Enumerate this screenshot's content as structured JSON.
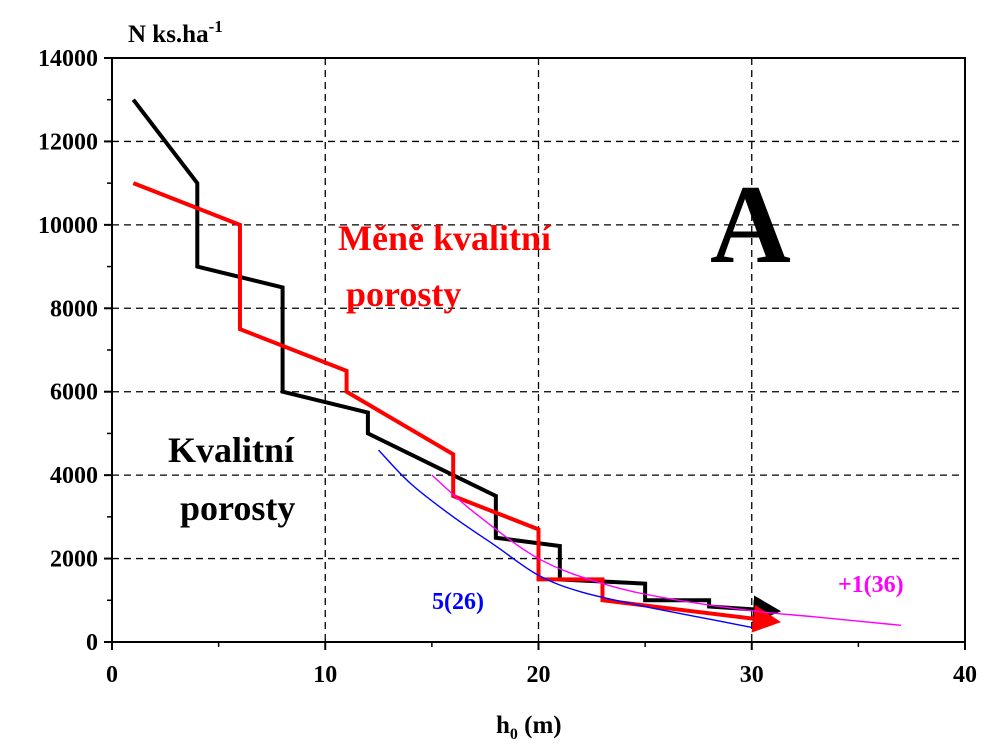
{
  "chart_data": {
    "type": "line",
    "title": "",
    "ylabel_base": "N ks.ha",
    "ylabel_sup": "-1",
    "xlabel_base": "h",
    "xlabel_sub": "0",
    "xlabel_rest": " (m)",
    "xlim": [
      0,
      40
    ],
    "ylim": [
      0,
      14000
    ],
    "x_ticks": [
      0,
      10,
      20,
      30,
      40
    ],
    "y_ticks": [
      0,
      2000,
      4000,
      6000,
      8000,
      10000,
      12000,
      14000
    ],
    "grid": "dashed",
    "series": [
      {
        "key": "black",
        "color": "#000000",
        "arrow": true,
        "points": [
          [
            1,
            13000
          ],
          [
            4,
            11000
          ],
          [
            4,
            9000
          ],
          [
            8,
            8500
          ],
          [
            8,
            6000
          ],
          [
            12,
            5500
          ],
          [
            12,
            5000
          ],
          [
            16,
            4000
          ],
          [
            18,
            3500
          ],
          [
            18,
            2500
          ],
          [
            21,
            2300
          ],
          [
            21,
            1500
          ],
          [
            25,
            1400
          ],
          [
            25,
            1000
          ],
          [
            28,
            1000
          ],
          [
            28,
            850
          ],
          [
            31,
            750
          ]
        ]
      },
      {
        "key": "red",
        "color": "#ff0000",
        "arrow": true,
        "points": [
          [
            1,
            11000
          ],
          [
            6,
            10000
          ],
          [
            6,
            7500
          ],
          [
            11,
            6500
          ],
          [
            11,
            6000
          ],
          [
            16,
            4500
          ],
          [
            16,
            3500
          ],
          [
            20,
            2700
          ],
          [
            20,
            1500
          ],
          [
            23,
            1500
          ],
          [
            23,
            1000
          ],
          [
            31,
            500
          ]
        ]
      },
      {
        "key": "blue",
        "color": "#0000ff",
        "arrow": false,
        "points": [
          [
            12.5,
            4600
          ],
          [
            14,
            3800
          ],
          [
            16,
            3000
          ],
          [
            18,
            2300
          ],
          [
            20,
            1600
          ],
          [
            22,
            1200
          ],
          [
            25,
            850
          ],
          [
            28,
            550
          ],
          [
            30,
            350
          ]
        ]
      },
      {
        "key": "magenta",
        "color": "#ff00ff",
        "arrow": false,
        "points": [
          [
            15,
            4000
          ],
          [
            17,
            3100
          ],
          [
            20,
            2000
          ],
          [
            23,
            1400
          ],
          [
            26,
            1050
          ],
          [
            30,
            750
          ],
          [
            33,
            600
          ],
          [
            37,
            400
          ]
        ]
      }
    ],
    "annotations": {
      "panel_letter": "A",
      "red_line1": "Měně kvalitní",
      "red_line2": "porosty",
      "black_line1": "Kvalitní",
      "black_line2": "porosty",
      "blue_label": "5(26)",
      "magenta_label": "+1(36)"
    }
  }
}
